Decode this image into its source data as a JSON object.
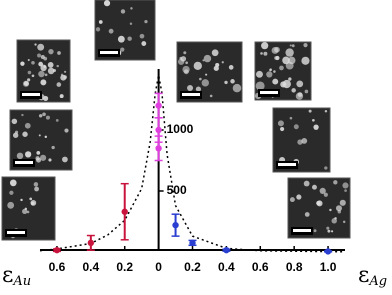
{
  "chart_data": {
    "type": "scatter",
    "x_label_left": {
      "symbol": "ε",
      "subscript": "Au"
    },
    "x_label_right": {
      "symbol": "ε",
      "subscript": "Ag"
    },
    "xlim": [
      -0.7,
      1.1
    ],
    "xticks": [
      {
        "value": -0.6,
        "label": "0.6"
      },
      {
        "value": -0.4,
        "label": "0.4"
      },
      {
        "value": -0.2,
        "label": "0.2"
      },
      0,
      0.2,
      0.4,
      0.6,
      0.8,
      {
        "value": 1.0,
        "label": "1.0"
      }
    ],
    "ylim": [
      0,
      1500
    ],
    "yticks": [
      500,
      1000
    ],
    "series": [
      {
        "color": "#c8143c",
        "x": [
          -0.6,
          -0.4,
          -0.2
        ],
        "values": [
          15,
          75,
          330
        ],
        "errors": [
          10,
          60,
          230
        ]
      },
      {
        "color": "#e040e0",
        "x": [
          0,
          0,
          0
        ],
        "values": [
          850,
          1000,
          1200
        ],
        "errors": [
          100,
          100,
          100
        ]
      },
      {
        "color": "#2a3fd0",
        "x": [
          0.1,
          0.2,
          0.4,
          1.0
        ],
        "values": [
          220,
          75,
          15,
          5
        ],
        "errors": [
          90,
          20,
          8,
          4
        ]
      }
    ],
    "fit": {
      "color": "#000000",
      "x": [
        -0.7,
        -0.6,
        -0.4,
        -0.3,
        -0.2,
        -0.1,
        -0.05,
        -0.02,
        0,
        0.02,
        0.05,
        0.1,
        0.2,
        0.4,
        0.6,
        1.0,
        1.1
      ],
      "values": [
        10,
        25,
        70,
        140,
        260,
        520,
        900,
        1300,
        1450,
        1300,
        800,
        380,
        130,
        30,
        10,
        3,
        2
      ]
    }
  }
}
